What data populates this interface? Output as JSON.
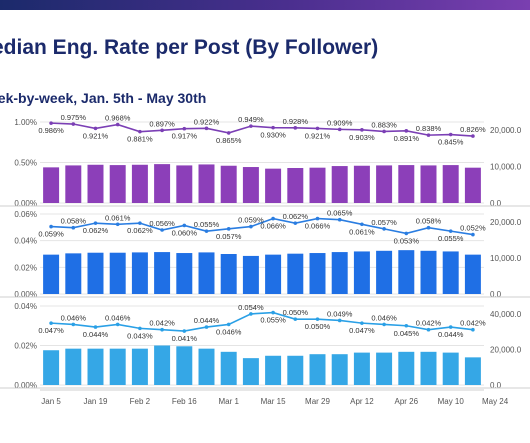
{
  "page": {
    "title": "edian Eng. Rate per Post (By Follower)",
    "subtitle": "eek-by-week, Jan. 5th - May 30th"
  },
  "chart_data": {
    "type": "bar",
    "x_ticks": [
      "Jan 5",
      "Jan 19",
      "Feb 2",
      "Feb 16",
      "Mar 1",
      "Mar 15",
      "Mar 29",
      "Apr 12",
      "Apr 26",
      "May 10",
      "May 24"
    ],
    "panels": [
      {
        "line_color": "#7b3fb5",
        "bar_color": "#8c3fb9",
        "left_ticks": [
          "1.00%",
          "0.50%",
          "0.00%"
        ],
        "left_range": [
          0.0,
          1.0
        ],
        "right_ticks": [
          "20,000.0",
          "10,000.0",
          "0.0"
        ],
        "right_range": [
          0,
          25000
        ],
        "line_values": [
          0.986,
          0.975,
          0.921,
          0.968,
          0.881,
          0.897,
          0.917,
          0.922,
          0.865,
          0.949,
          0.93,
          0.928,
          0.921,
          0.909,
          0.903,
          0.883,
          0.891,
          0.838,
          0.845,
          0.826
        ],
        "line_labels": [
          "0.986%",
          "0.975%",
          "0.921%",
          "0.968%",
          "0.881%",
          "0.897%",
          "0.917%",
          "0.922%",
          "0.865%",
          "0.949%",
          "0.930%",
          "0.928%",
          "0.921%",
          "0.909%",
          "0.903%",
          "0.883%",
          "0.891%",
          "0.838%",
          "0.845%",
          "0.826%"
        ],
        "bar_values": [
          11000,
          11600,
          11800,
          11700,
          11800,
          12000,
          11600,
          11900,
          11500,
          11100,
          10600,
          10800,
          10900,
          11400,
          11500,
          11600,
          11700,
          11600,
          11700,
          10900
        ]
      },
      {
        "line_color": "#2a7de1",
        "bar_color": "#1f6fe5",
        "left_ticks": [
          "0.06%",
          "0.04%",
          "0.02%",
          "0.00%"
        ],
        "left_range": [
          0.0,
          0.07
        ],
        "right_ticks": [
          "20,000.0",
          "10,000.0",
          "0.0"
        ],
        "right_range": [
          0,
          25000
        ],
        "line_values": [
          0.059,
          0.058,
          0.062,
          0.061,
          0.062,
          0.056,
          0.06,
          0.055,
          0.057,
          0.059,
          0.066,
          0.062,
          0.066,
          0.065,
          0.061,
          0.057,
          0.053,
          0.058,
          0.055,
          0.052
        ],
        "line_labels": [
          "0.059%",
          "0.058%",
          "0.062%",
          "0.061%",
          "0.062%",
          "0.056%",
          "0.060%",
          "0.055%",
          "0.057%",
          "0.059%",
          "0.066%",
          "0.062%",
          "0.066%",
          "0.065%",
          "0.061%",
          "0.057%",
          "0.053%",
          "0.058%",
          "0.055%",
          "0.052%"
        ],
        "bar_values": [
          12300,
          12700,
          12900,
          12900,
          13000,
          13100,
          12800,
          13000,
          12500,
          11900,
          12300,
          12600,
          12800,
          13100,
          13300,
          13500,
          13700,
          13500,
          13300,
          12300
        ]
      },
      {
        "line_color": "#2aa0e6",
        "bar_color": "#35a7e6",
        "left_ticks": [
          "0.04%",
          "0.02%",
          "0.00%"
        ],
        "left_range": [
          0.0,
          0.06
        ],
        "right_ticks": [
          "40,000.0",
          "20,000.0",
          "0.0"
        ],
        "right_range": [
          0,
          50000
        ],
        "line_values": [
          0.047,
          0.046,
          0.044,
          0.046,
          0.043,
          0.042,
          0.041,
          0.044,
          0.046,
          0.054,
          0.055,
          0.05,
          0.05,
          0.049,
          0.047,
          0.046,
          0.045,
          0.042,
          0.044,
          0.042
        ],
        "line_labels": [
          "0.047%",
          "0.046%",
          "0.044%",
          "0.046%",
          "0.043%",
          "0.042%",
          "0.041%",
          "0.044%",
          "0.046%",
          "0.054%",
          "0.055%",
          "0.050%",
          "0.050%",
          "0.049%",
          "0.047%",
          "0.046%",
          "0.045%",
          "0.042%",
          "0.044%",
          "0.042%"
        ],
        "bar_values": [
          22000,
          23000,
          23000,
          23000,
          23000,
          25000,
          24500,
          23000,
          21000,
          17000,
          18500,
          18500,
          19500,
          19500,
          20500,
          20500,
          21000,
          21000,
          20500,
          17500
        ]
      }
    ]
  }
}
